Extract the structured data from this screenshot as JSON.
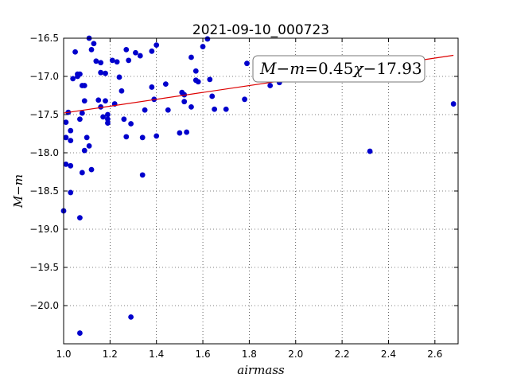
{
  "chart_data": {
    "type": "scatter",
    "title": "2021-09-10_000723",
    "xlabel": "airmass",
    "ylabel": "M−m",
    "xlim": [
      1.0,
      2.7
    ],
    "ylim": [
      -20.5,
      -16.5
    ],
    "y_inverted": true,
    "grid": true,
    "xticks": [
      "1.0",
      "1.2",
      "1.4",
      "1.6",
      "1.8",
      "2.0",
      "2.2",
      "2.4",
      "2.6"
    ],
    "yticks": [
      "−16.5",
      "−17.0",
      "−17.5",
      "−18.0",
      "−18.5",
      "−19.0",
      "−19.5",
      "−20.0"
    ],
    "marker_color": "#0000cc",
    "fit": {
      "slope": 0.45,
      "intercept": -17.93,
      "color": "#dd0000",
      "label": "M−m=0.45χ−17.93",
      "label_parts": {
        "lhs": "M−m",
        "eq": "=0.45",
        "chi": "χ",
        "rhs": "−17.93"
      }
    },
    "points": [
      [
        1.0,
        -18.76
      ],
      [
        1.01,
        -17.6
      ],
      [
        1.01,
        -17.8
      ],
      [
        1.01,
        -18.15
      ],
      [
        1.02,
        -17.47
      ],
      [
        1.03,
        -17.71
      ],
      [
        1.03,
        -17.84
      ],
      [
        1.03,
        -18.17
      ],
      [
        1.03,
        -18.52
      ],
      [
        1.04,
        -17.03
      ],
      [
        1.05,
        -16.68
      ],
      [
        1.06,
        -16.97
      ],
      [
        1.06,
        -17.0
      ],
      [
        1.07,
        -16.97
      ],
      [
        1.07,
        -17.56
      ],
      [
        1.07,
        -18.85
      ],
      [
        1.07,
        -20.36
      ],
      [
        1.08,
        -17.12
      ],
      [
        1.08,
        -17.48
      ],
      [
        1.08,
        -18.26
      ],
      [
        1.09,
        -17.12
      ],
      [
        1.09,
        -17.32
      ],
      [
        1.09,
        -17.97
      ],
      [
        1.1,
        -17.8
      ],
      [
        1.11,
        -16.5
      ],
      [
        1.11,
        -17.91
      ],
      [
        1.12,
        -16.65
      ],
      [
        1.12,
        -18.22
      ],
      [
        1.13,
        -16.57
      ],
      [
        1.14,
        -16.8
      ],
      [
        1.15,
        -17.31
      ],
      [
        1.16,
        -16.82
      ],
      [
        1.16,
        -16.95
      ],
      [
        1.16,
        -17.4
      ],
      [
        1.17,
        -17.53
      ],
      [
        1.18,
        -16.96
      ],
      [
        1.18,
        -17.32
      ],
      [
        1.19,
        -17.5
      ],
      [
        1.19,
        -17.56
      ],
      [
        1.19,
        -17.61
      ],
      [
        1.21,
        -16.79
      ],
      [
        1.22,
        -17.36
      ],
      [
        1.23,
        -16.81
      ],
      [
        1.24,
        -17.01
      ],
      [
        1.25,
        -17.19
      ],
      [
        1.26,
        -17.56
      ],
      [
        1.27,
        -16.65
      ],
      [
        1.27,
        -17.79
      ],
      [
        1.28,
        -16.79
      ],
      [
        1.29,
        -17.62
      ],
      [
        1.29,
        -20.15
      ],
      [
        1.31,
        -16.69
      ],
      [
        1.33,
        -16.73
      ],
      [
        1.34,
        -17.8
      ],
      [
        1.34,
        -18.29
      ],
      [
        1.35,
        -17.44
      ],
      [
        1.38,
        -16.67
      ],
      [
        1.38,
        -17.14
      ],
      [
        1.39,
        -17.3
      ],
      [
        1.4,
        -16.59
      ],
      [
        1.4,
        -17.78
      ],
      [
        1.44,
        -17.1
      ],
      [
        1.45,
        -17.44
      ],
      [
        1.5,
        -17.74
      ],
      [
        1.51,
        -17.21
      ],
      [
        1.52,
        -17.33
      ],
      [
        1.52,
        -17.24
      ],
      [
        1.53,
        -17.73
      ],
      [
        1.55,
        -16.75
      ],
      [
        1.55,
        -17.4
      ],
      [
        1.57,
        -16.93
      ],
      [
        1.57,
        -17.05
      ],
      [
        1.58,
        -17.07
      ],
      [
        1.6,
        -16.61
      ],
      [
        1.62,
        -16.51
      ],
      [
        1.63,
        -17.04
      ],
      [
        1.64,
        -17.26
      ],
      [
        1.65,
        -17.43
      ],
      [
        1.7,
        -17.43
      ],
      [
        1.78,
        -17.3
      ],
      [
        1.79,
        -16.83
      ],
      [
        1.89,
        -17.12
      ],
      [
        1.93,
        -17.08
      ],
      [
        2.32,
        -17.98
      ],
      [
        2.68,
        -17.36
      ]
    ]
  }
}
